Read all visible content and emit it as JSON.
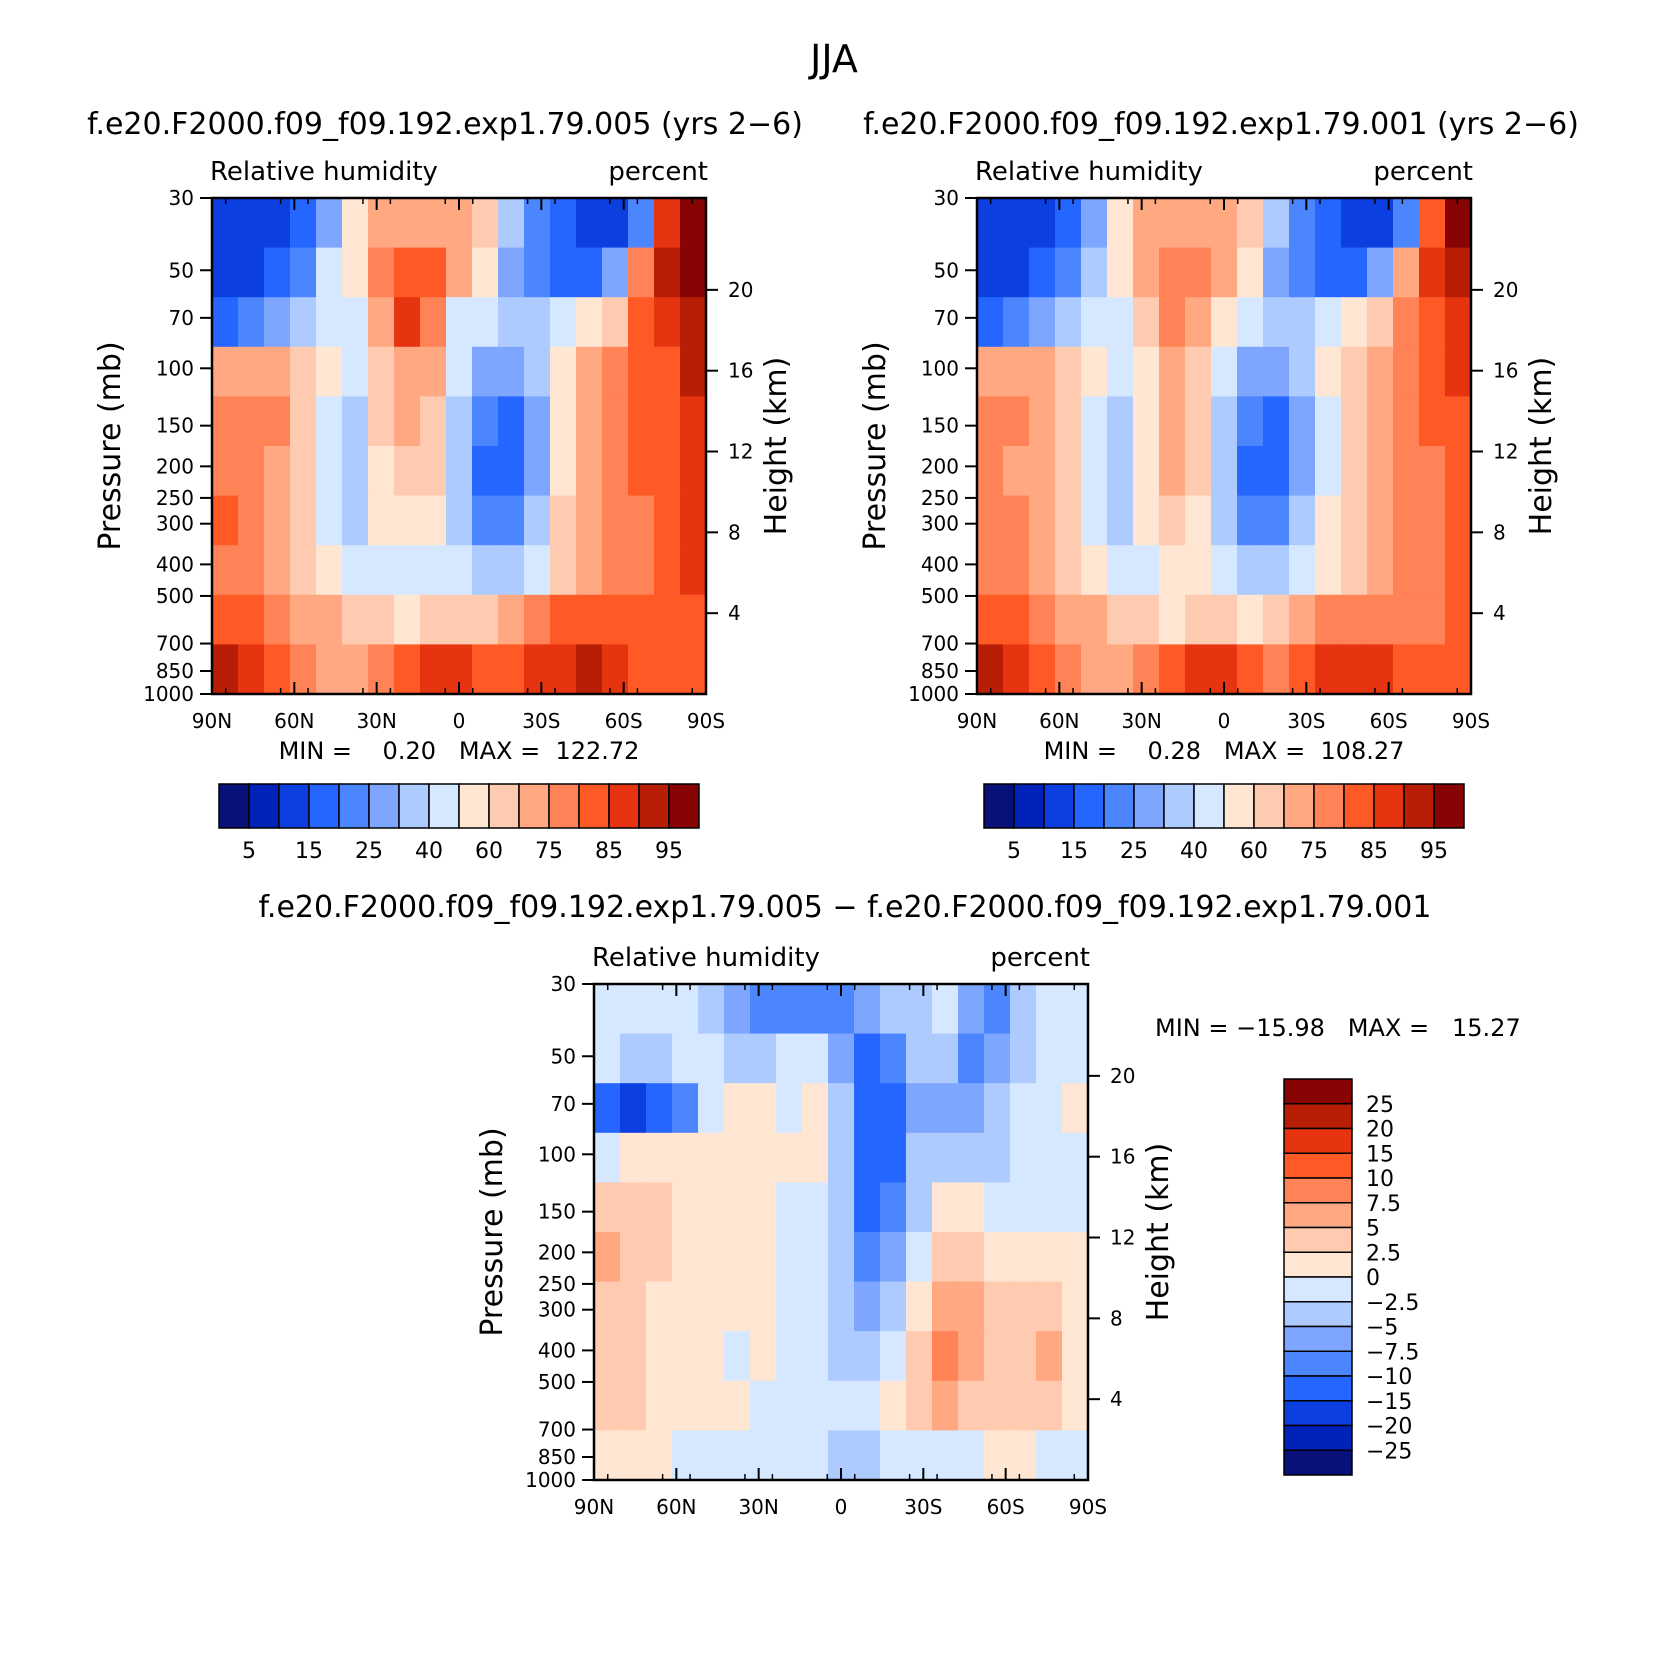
{
  "figure": {
    "title": "JJA"
  },
  "colors": {
    "abs_palette": [
      "#08107a",
      "#0022b8",
      "#0c3fe0",
      "#2466ff",
      "#4c86ff",
      "#7ea6ff",
      "#aecbff",
      "#d6e8ff",
      "#ffe6d2",
      "#ffcbb0",
      "#ffa882",
      "#ff8356",
      "#ff5a26",
      "#e63410",
      "#b81e06",
      "#880404"
    ],
    "diff_palette": [
      "#08107a",
      "#0022b8",
      "#0c3fe0",
      "#2466ff",
      "#4c86ff",
      "#7ea6ff",
      "#aecbff",
      "#d6e8ff",
      "#ffe6d2",
      "#ffcbb0",
      "#ffa882",
      "#ff8356",
      "#ff5a26",
      "#e63410",
      "#b81e06",
      "#880404"
    ]
  },
  "chart_data": [
    {
      "type": "heatmap",
      "id": "left",
      "title": "f.e20.F2000.f09_f09.192.exp1.79.005 (yrs 2−6)",
      "left_label": "Relative humidity",
      "right_label": "percent",
      "ylabel": "Pressure (mb)",
      "ylabel_right": "Height (km)",
      "x_ticks": [
        "90N",
        "60N",
        "30N",
        "0",
        "30S",
        "60S",
        "90S"
      ],
      "y_ticks": [
        "30",
        "50",
        "70",
        "100",
        "150",
        "200",
        "250",
        "300",
        "400",
        "500",
        "700",
        "850",
        "1000"
      ],
      "height_ticks": [
        "20",
        "16",
        "12",
        "8",
        "4"
      ],
      "min_max": "MIN =    0.20   MAX =  122.72",
      "colorbar_labels": [
        "5",
        "15",
        "25",
        "40",
        "60",
        "75",
        "85",
        "95"
      ],
      "levels": [
        5,
        10,
        15,
        20,
        25,
        30,
        40,
        50,
        60,
        65,
        75,
        80,
        85,
        90,
        95
      ],
      "field": [
        [
          2,
          2,
          2,
          3,
          5,
          8,
          10,
          10,
          10,
          10,
          9,
          6,
          4,
          3,
          2,
          2,
          4,
          13,
          15
        ],
        [
          2,
          2,
          3,
          4,
          7,
          8,
          11,
          12,
          12,
          10,
          8,
          5,
          4,
          3,
          3,
          5,
          11,
          14,
          15
        ],
        [
          3,
          4,
          5,
          6,
          7,
          7,
          10,
          13,
          11,
          7,
          7,
          6,
          6,
          7,
          8,
          9,
          12,
          13,
          14
        ],
        [
          10,
          10,
          10,
          9,
          8,
          7,
          9,
          10,
          10,
          7,
          5,
          5,
          6,
          8,
          10,
          11,
          12,
          12,
          14
        ],
        [
          11,
          11,
          11,
          9,
          7,
          6,
          9,
          10,
          9,
          6,
          4,
          3,
          5,
          8,
          10,
          11,
          12,
          12,
          13
        ],
        [
          11,
          11,
          10,
          9,
          7,
          6,
          8,
          9,
          9,
          6,
          3,
          3,
          5,
          8,
          10,
          11,
          12,
          12,
          13
        ],
        [
          12,
          11,
          10,
          9,
          7,
          6,
          8,
          8,
          8,
          6,
          4,
          4,
          6,
          9,
          10,
          11,
          11,
          12,
          13
        ],
        [
          11,
          11,
          10,
          9,
          8,
          7,
          7,
          7,
          7,
          7,
          6,
          6,
          7,
          9,
          10,
          11,
          11,
          12,
          13
        ],
        [
          12,
          12,
          11,
          10,
          10,
          9,
          9,
          8,
          9,
          9,
          9,
          10,
          11,
          12,
          12,
          12,
          12,
          12,
          12
        ],
        [
          14,
          13,
          12,
          11,
          10,
          10,
          11,
          12,
          13,
          13,
          12,
          12,
          13,
          13,
          14,
          13,
          12,
          12,
          12
        ]
      ]
    },
    {
      "type": "heatmap",
      "id": "right",
      "title": "f.e20.F2000.f09_f09.192.exp1.79.001 (yrs 2−6)",
      "left_label": "Relative humidity",
      "right_label": "percent",
      "ylabel": "Pressure (mb)",
      "ylabel_right": "Height (km)",
      "x_ticks": [
        "90N",
        "60N",
        "30N",
        "0",
        "30S",
        "60S",
        "90S"
      ],
      "y_ticks": [
        "30",
        "50",
        "70",
        "100",
        "150",
        "200",
        "250",
        "300",
        "400",
        "500",
        "700",
        "850",
        "1000"
      ],
      "height_ticks": [
        "20",
        "16",
        "12",
        "8",
        "4"
      ],
      "min_max": "MIN =    0.28   MAX =  108.27",
      "colorbar_labels": [
        "5",
        "15",
        "25",
        "40",
        "60",
        "75",
        "85",
        "95"
      ],
      "levels": [
        5,
        10,
        15,
        20,
        25,
        30,
        40,
        50,
        60,
        65,
        75,
        80,
        85,
        90,
        95
      ],
      "field": [
        [
          2,
          2,
          2,
          3,
          5,
          8,
          10,
          10,
          10,
          10,
          9,
          6,
          4,
          3,
          2,
          2,
          4,
          12,
          15
        ],
        [
          2,
          2,
          3,
          4,
          6,
          8,
          10,
          11,
          11,
          10,
          8,
          5,
          4,
          3,
          3,
          5,
          10,
          13,
          14
        ],
        [
          3,
          4,
          5,
          6,
          7,
          7,
          9,
          11,
          10,
          8,
          7,
          6,
          6,
          7,
          8,
          9,
          11,
          12,
          13
        ],
        [
          10,
          10,
          10,
          9,
          8,
          7,
          8,
          10,
          9,
          7,
          5,
          5,
          6,
          8,
          9,
          10,
          11,
          12,
          13
        ],
        [
          11,
          11,
          10,
          9,
          7,
          6,
          8,
          10,
          9,
          6,
          4,
          3,
          5,
          7,
          9,
          10,
          11,
          12,
          12
        ],
        [
          11,
          10,
          10,
          9,
          7,
          6,
          8,
          10,
          9,
          6,
          3,
          3,
          5,
          7,
          9,
          10,
          11,
          11,
          12
        ],
        [
          11,
          11,
          10,
          9,
          7,
          6,
          8,
          9,
          8,
          6,
          4,
          4,
          6,
          8,
          9,
          10,
          11,
          11,
          12
        ],
        [
          11,
          11,
          10,
          9,
          8,
          7,
          7,
          8,
          8,
          7,
          6,
          6,
          7,
          8,
          9,
          10,
          11,
          11,
          12
        ],
        [
          12,
          12,
          11,
          10,
          10,
          9,
          9,
          8,
          9,
          9,
          8,
          9,
          10,
          11,
          11,
          11,
          11,
          11,
          12
        ],
        [
          14,
          13,
          12,
          11,
          10,
          10,
          11,
          12,
          13,
          13,
          12,
          11,
          12,
          13,
          13,
          13,
          12,
          12,
          12
        ]
      ]
    },
    {
      "type": "heatmap",
      "id": "diff",
      "title": "f.e20.F2000.f09_f09.192.exp1.79.005 − f.e20.F2000.f09_f09.192.exp1.79.001",
      "left_label": "Relative humidity",
      "right_label": "percent",
      "ylabel": "Pressure (mb)",
      "ylabel_right": "Height (km)",
      "x_ticks": [
        "90N",
        "60N",
        "30N",
        "0",
        "30S",
        "60S",
        "90S"
      ],
      "y_ticks": [
        "30",
        "50",
        "70",
        "100",
        "150",
        "200",
        "250",
        "300",
        "400",
        "500",
        "700",
        "850",
        "1000"
      ],
      "height_ticks": [
        "20",
        "16",
        "12",
        "8",
        "4"
      ],
      "min_max": "MIN = −15.98   MAX =   15.27",
      "colorbar_labels": [
        "25",
        "20",
        "15",
        "10",
        "7.5",
        "5",
        "2.5",
        "0",
        "−2.5",
        "−5",
        "−7.5",
        "−10",
        "−15",
        "−20",
        "−25"
      ],
      "levels": [
        -25,
        -20,
        -15,
        -10,
        -7.5,
        -5,
        -2.5,
        0,
        2.5,
        5,
        7.5,
        10,
        15,
        20,
        25
      ],
      "field": [
        [
          7,
          7,
          7,
          7,
          6,
          5,
          4,
          4,
          4,
          4,
          5,
          6,
          6,
          7,
          5,
          4,
          6,
          7,
          7
        ],
        [
          7,
          6,
          6,
          7,
          7,
          6,
          6,
          7,
          7,
          5,
          3,
          4,
          6,
          6,
          4,
          5,
          6,
          7,
          7
        ],
        [
          3,
          2,
          3,
          4,
          7,
          8,
          8,
          7,
          8,
          6,
          3,
          3,
          5,
          5,
          5,
          6,
          7,
          7,
          8
        ],
        [
          7,
          8,
          8,
          8,
          8,
          8,
          8,
          8,
          8,
          6,
          3,
          3,
          6,
          6,
          6,
          6,
          7,
          7,
          7
        ],
        [
          9,
          9,
          9,
          8,
          8,
          8,
          8,
          7,
          7,
          6,
          3,
          4,
          6,
          8,
          8,
          7,
          7,
          7,
          7
        ],
        [
          10,
          9,
          9,
          8,
          8,
          8,
          8,
          7,
          7,
          6,
          4,
          5,
          7,
          9,
          9,
          8,
          8,
          8,
          8
        ],
        [
          9,
          9,
          8,
          8,
          8,
          8,
          8,
          7,
          7,
          6,
          5,
          6,
          8,
          10,
          10,
          9,
          9,
          9,
          8
        ],
        [
          9,
          9,
          8,
          8,
          8,
          7,
          8,
          7,
          7,
          6,
          6,
          7,
          9,
          11,
          10,
          9,
          9,
          10,
          8
        ],
        [
          9,
          9,
          8,
          8,
          8,
          8,
          7,
          7,
          7,
          7,
          7,
          8,
          9,
          10,
          9,
          9,
          9,
          9,
          8
        ],
        [
          8,
          8,
          8,
          7,
          7,
          7,
          7,
          7,
          7,
          6,
          6,
          7,
          7,
          7,
          7,
          8,
          8,
          7,
          7
        ]
      ]
    }
  ]
}
